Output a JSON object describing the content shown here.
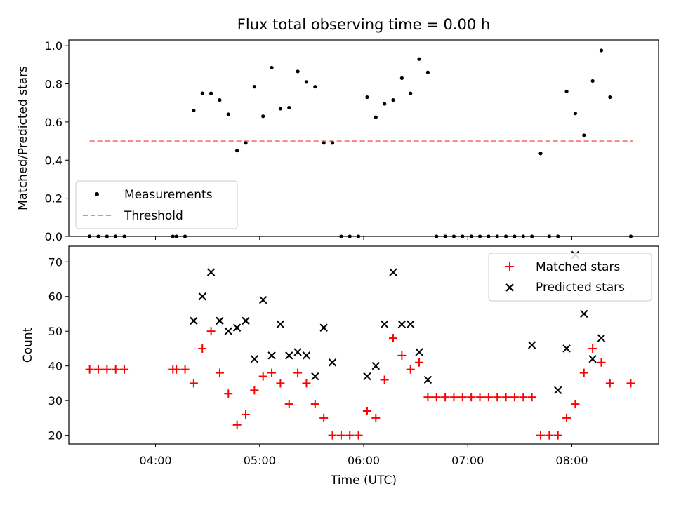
{
  "chart_data": [
    {
      "type": "scatter",
      "title": "Flux total observing time = 0.00 h",
      "xlabel": "",
      "ylabel": "Matched/Predicted stars",
      "xlim": [
        "03:10",
        "08:50"
      ],
      "ylim": [
        0,
        1.03
      ],
      "yticks": [
        0.0,
        0.2,
        0.4,
        0.6,
        0.8,
        1.0
      ],
      "ytick_labels": [
        "0.0",
        "0.2",
        "0.4",
        "0.6",
        "0.8",
        "1.0"
      ],
      "legend": {
        "placement": "lower-left",
        "entries": [
          "Measurements",
          "Threshold"
        ]
      },
      "threshold": {
        "name": "Threshold",
        "value": 0.5,
        "x_start": "03:22",
        "x_end": "08:35",
        "color": "#ff8080",
        "style": "dashed"
      },
      "series": [
        {
          "name": "Measurements",
          "color": "#000000",
          "marker": "dot",
          "x": [
            "03:22",
            "03:27",
            "03:32",
            "03:37",
            "03:42",
            "04:10",
            "04:12",
            "04:17",
            "04:22",
            "04:27",
            "04:32",
            "04:37",
            "04:42",
            "04:47",
            "04:52",
            "04:57",
            "05:02",
            "05:07",
            "05:12",
            "05:17",
            "05:22",
            "05:27",
            "05:32",
            "05:37",
            "05:42",
            "05:47",
            "05:52",
            "05:57",
            "06:02",
            "06:07",
            "06:12",
            "06:17",
            "06:22",
            "06:27",
            "06:32",
            "06:37",
            "06:42",
            "06:47",
            "06:52",
            "06:57",
            "07:02",
            "07:07",
            "07:12",
            "07:17",
            "07:22",
            "07:27",
            "07:32",
            "07:37",
            "07:42",
            "07:47",
            "07:52",
            "07:57",
            "08:02",
            "08:07",
            "08:12",
            "08:17",
            "08:22",
            "08:34"
          ],
          "y": [
            0,
            0,
            0,
            0,
            0,
            0,
            0,
            0,
            0.66,
            0.75,
            0.75,
            0.715,
            0.64,
            0.45,
            0.49,
            0.785,
            0.63,
            0.885,
            0.67,
            0.675,
            0.865,
            0.81,
            0.785,
            0.49,
            0.49,
            0,
            0,
            0,
            0.73,
            0.625,
            0.695,
            0.715,
            0.83,
            0.75,
            0.93,
            0.86,
            0,
            0,
            0,
            0,
            0,
            0,
            0,
            0,
            0,
            0,
            0,
            0,
            0.435,
            0,
            0,
            0.76,
            0.645,
            0.53,
            0.815,
            0.975,
            0.73,
            0
          ]
        }
      ]
    },
    {
      "type": "scatter",
      "title": "",
      "xlabel": "Time (UTC)",
      "ylabel": "Count",
      "xlim": [
        "03:10",
        "08:50"
      ],
      "ylim": [
        17.5,
        74.5
      ],
      "xticks": [
        "04:00",
        "05:00",
        "06:00",
        "07:00",
        "08:00"
      ],
      "yticks": [
        20,
        30,
        40,
        50,
        60,
        70
      ],
      "ytick_labels": [
        "20",
        "30",
        "40",
        "50",
        "60",
        "70"
      ],
      "legend": {
        "placement": "top-right",
        "entries": [
          "Matched stars",
          "Predicted stars"
        ]
      },
      "series": [
        {
          "name": "Matched stars",
          "color": "#ff0000",
          "marker": "plus",
          "x": [
            "03:22",
            "03:27",
            "03:32",
            "03:37",
            "03:42",
            "04:10",
            "04:12",
            "04:17",
            "04:22",
            "04:27",
            "04:32",
            "04:37",
            "04:42",
            "04:47",
            "04:52",
            "04:57",
            "05:02",
            "05:07",
            "05:12",
            "05:17",
            "05:22",
            "05:27",
            "05:32",
            "05:37",
            "05:42",
            "05:47",
            "05:52",
            "05:57",
            "06:02",
            "06:07",
            "06:12",
            "06:17",
            "06:22",
            "06:27",
            "06:32",
            "06:37",
            "06:42",
            "06:47",
            "06:52",
            "06:57",
            "07:02",
            "07:07",
            "07:12",
            "07:17",
            "07:22",
            "07:27",
            "07:32",
            "07:37",
            "07:42",
            "07:47",
            "07:52",
            "07:57",
            "08:02",
            "08:07",
            "08:12",
            "08:17",
            "08:22",
            "08:34"
          ],
          "y": [
            39,
            39,
            39,
            39,
            39,
            39,
            39,
            39,
            35,
            45,
            50,
            38,
            32,
            23,
            26,
            33,
            37,
            38,
            35,
            29,
            38,
            35,
            29,
            25,
            20,
            20,
            20,
            20,
            27,
            25,
            36,
            48,
            43,
            39,
            41,
            31,
            31,
            31,
            31,
            31,
            31,
            31,
            31,
            31,
            31,
            31,
            31,
            31,
            20,
            20,
            20,
            25,
            29,
            38,
            45,
            41,
            35,
            35
          ]
        },
        {
          "name": "Predicted stars",
          "color": "#000000",
          "marker": "x",
          "x": [
            "04:22",
            "04:27",
            "04:32",
            "04:37",
            "04:42",
            "04:47",
            "04:52",
            "04:57",
            "05:02",
            "05:07",
            "05:12",
            "05:17",
            "05:22",
            "05:27",
            "05:32",
            "05:37",
            "05:42",
            "06:02",
            "06:07",
            "06:12",
            "06:17",
            "06:22",
            "06:27",
            "06:32",
            "06:37",
            "07:37",
            "07:52",
            "07:57",
            "08:02",
            "08:07",
            "08:12",
            "08:17"
          ],
          "y": [
            53,
            60,
            67,
            53,
            50,
            51,
            53,
            42,
            59,
            43,
            52,
            43,
            44,
            43,
            37,
            51,
            41,
            37,
            40,
            52,
            67,
            52,
            52,
            44,
            36,
            46,
            33,
            45,
            72,
            55,
            42,
            48
          ]
        }
      ]
    }
  ]
}
